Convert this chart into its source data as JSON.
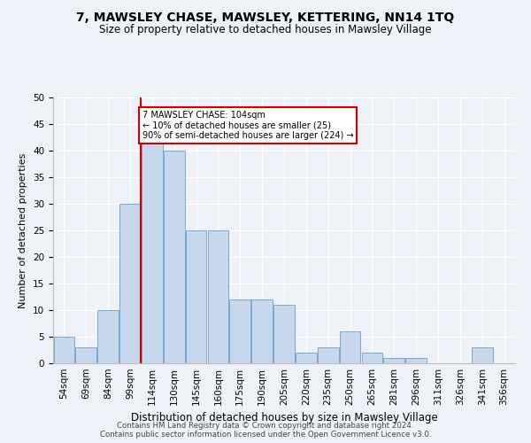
{
  "title": "7, MAWSLEY CHASE, MAWSLEY, KETTERING, NN14 1TQ",
  "subtitle": "Size of property relative to detached houses in Mawsley Village",
  "xlabel": "Distribution of detached houses by size in Mawsley Village",
  "ylabel": "Number of detached properties",
  "bins": [
    "54sqm",
    "69sqm",
    "84sqm",
    "99sqm",
    "114sqm",
    "130sqm",
    "145sqm",
    "160sqm",
    "175sqm",
    "190sqm",
    "205sqm",
    "220sqm",
    "235sqm",
    "250sqm",
    "265sqm",
    "281sqm",
    "296sqm",
    "311sqm",
    "326sqm",
    "341sqm",
    "356sqm"
  ],
  "values": [
    5,
    3,
    10,
    30,
    42,
    40,
    25,
    25,
    12,
    12,
    11,
    2,
    3,
    6,
    2,
    1,
    1,
    0,
    0,
    3,
    0
  ],
  "bar_color": "#c8d8ec",
  "bar_edge_color": "#7aaad0",
  "vline_color": "#cc0000",
  "annotation_text": "7 MAWSLEY CHASE: 104sqm\n← 10% of detached houses are smaller (25)\n90% of semi-detached houses are larger (224) →",
  "annotation_box_color": "#ffffff",
  "annotation_box_edge": "#cc0000",
  "ylim": [
    0,
    50
  ],
  "yticks": [
    0,
    5,
    10,
    15,
    20,
    25,
    30,
    35,
    40,
    45,
    50
  ],
  "footer1": "Contains HM Land Registry data © Crown copyright and database right 2024.",
  "footer2": "Contains public sector information licensed under the Open Government Licence v3.0.",
  "bg_color": "#eef2f8",
  "plot_bg_color": "#eef2f8",
  "title_fontsize": 10,
  "subtitle_fontsize": 8.5,
  "ylabel_fontsize": 8,
  "xlabel_fontsize": 8.5,
  "tick_fontsize": 7.5,
  "footer_fontsize": 6.2
}
